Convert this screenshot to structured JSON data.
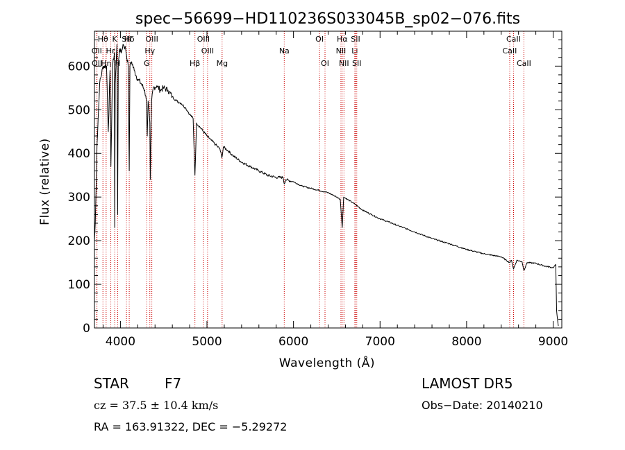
{
  "chart_data": {
    "type": "line",
    "title": "spec−56699−HD110236S033045B_sp02−076.fits",
    "xlabel": "Wavelength (Å)",
    "ylabel": "Flux (relative)",
    "xlim": [
      3700,
      9100
    ],
    "ylim": [
      0,
      680
    ],
    "xticks": [
      4000,
      5000,
      6000,
      7000,
      8000,
      9000
    ],
    "yticks": [
      0,
      100,
      200,
      300,
      400,
      500,
      600
    ],
    "grid": false,
    "line_color": "#000000",
    "marker_color": "#cc0000",
    "series": [
      {
        "x": [
          3700,
          3710,
          3730,
          3760,
          3800,
          3840,
          3860,
          3880,
          3890,
          3910,
          3930,
          3934,
          3940,
          3960,
          3968,
          3975,
          3990,
          4010,
          4030,
          4060,
          4090,
          4102,
          4110,
          4130,
          4160,
          4200,
          4240,
          4280,
          4300,
          4310,
          4320,
          4340,
          4345,
          4360,
          4380,
          4420,
          4460,
          4500,
          4550,
          4600,
          4650,
          4700,
          4750,
          4800,
          4840,
          4861,
          4880,
          4920,
          4960,
          5000,
          5050,
          5100,
          5150,
          5172,
          5190,
          5250,
          5300,
          5400,
          5500,
          5600,
          5700,
          5800,
          5880,
          5893,
          5910,
          6000,
          6100,
          6200,
          6300,
          6400,
          6500,
          6540,
          6563,
          6580,
          6620,
          6700,
          6800,
          6900,
          7000,
          7100,
          7200,
          7400,
          7600,
          7800,
          8000,
          8200,
          8400,
          8498,
          8520,
          8542,
          8580,
          8640,
          8662,
          8700,
          8800,
          8900,
          9000,
          9030,
          9040,
          9050,
          9060
        ],
        "y": [
          200,
          240,
          420,
          560,
          600,
          600,
          450,
          590,
          370,
          600,
          630,
          230,
          560,
          650,
          260,
          600,
          640,
          630,
          650,
          640,
          600,
          360,
          600,
          610,
          590,
          570,
          560,
          545,
          520,
          440,
          520,
          470,
          340,
          520,
          550,
          555,
          545,
          550,
          545,
          530,
          520,
          515,
          505,
          490,
          480,
          350,
          470,
          460,
          450,
          440,
          430,
          420,
          410,
          390,
          415,
          405,
          395,
          380,
          370,
          360,
          350,
          345,
          345,
          330,
          340,
          335,
          325,
          320,
          315,
          310,
          300,
          295,
          230,
          300,
          295,
          285,
          270,
          260,
          250,
          243,
          235,
          220,
          205,
          193,
          180,
          170,
          163,
          150,
          155,
          135,
          155,
          152,
          132,
          150,
          148,
          142,
          138,
          145,
          40,
          20,
          5
        ]
      }
    ],
    "line_markers": [
      {
        "label": "Hθ",
        "wavelength": 3798,
        "row": 0
      },
      {
        "label": "OII",
        "wavelength": 3727,
        "row": 1
      },
      {
        "label": "OII",
        "wavelength": 3729,
        "row": 2
      },
      {
        "label": "Hη",
        "wavelength": 3835,
        "row": 2
      },
      {
        "label": "Hε",
        "wavelength": 3889,
        "row": 1
      },
      {
        "label": "K",
        "wavelength": 3934,
        "row": 0
      },
      {
        "label": "H",
        "wavelength": 3968,
        "row": 2
      },
      {
        "label": "SII",
        "wavelength": 4070,
        "row": 0
      },
      {
        "label": "Hδ",
        "wavelength": 4102,
        "row": 0
      },
      {
        "label": "OIII",
        "wavelength": 4363,
        "row": 0
      },
      {
        "label": "Hγ",
        "wavelength": 4340,
        "row": 1
      },
      {
        "label": "G",
        "wavelength": 4304,
        "row": 2
      },
      {
        "label": "Hβ",
        "wavelength": 4861,
        "row": 2
      },
      {
        "label": "OIII",
        "wavelength": 4959,
        "row": 0
      },
      {
        "label": "OIII",
        "wavelength": 5007,
        "row": 1
      },
      {
        "label": "Mg",
        "wavelength": 5175,
        "row": 2
      },
      {
        "label": "Na",
        "wavelength": 5893,
        "row": 1
      },
      {
        "label": "OI",
        "wavelength": 6300,
        "row": 0
      },
      {
        "label": "OI",
        "wavelength": 6364,
        "row": 2
      },
      {
        "label": "Hα",
        "wavelength": 6563,
        "row": 0
      },
      {
        "label": "NII",
        "wavelength": 6548,
        "row": 1
      },
      {
        "label": "NII",
        "wavelength": 6583,
        "row": 2
      },
      {
        "label": "SII",
        "wavelength": 6717,
        "row": 0
      },
      {
        "label": "Li",
        "wavelength": 6708,
        "row": 1
      },
      {
        "label": "SII",
        "wavelength": 6731,
        "row": 2
      },
      {
        "label": "CaII",
        "wavelength": 8542,
        "row": 0
      },
      {
        "label": "CaII",
        "wavelength": 8498,
        "row": 1
      },
      {
        "label": "CaII",
        "wavelength": 8662,
        "row": 2
      }
    ]
  },
  "info": {
    "class_label": "STAR",
    "subclass": "F7",
    "survey": "LAMOST DR5",
    "redshift": "cz = 37.5 ± 10.4 km/s",
    "obs_date": "Obs−Date: 20140210",
    "coords": "RA = 163.91322, DEC =  −5.29272"
  }
}
